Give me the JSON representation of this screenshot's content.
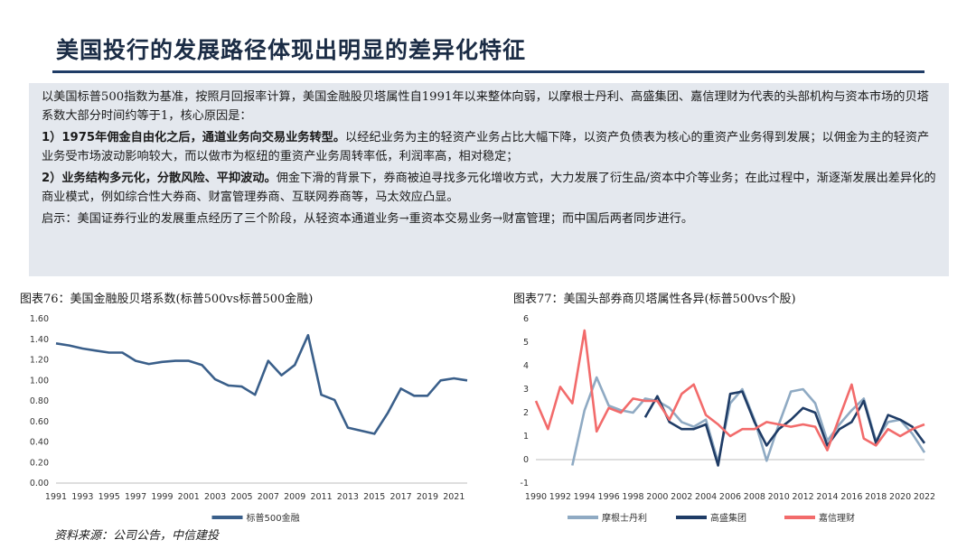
{
  "slide": {
    "title": "美国投行的发展路径体现出明显的差异化特征",
    "source": "资料来源：公司公告，中信建投"
  },
  "summary": {
    "intro": "以美国标普500指数为基准，按照月回报率计算，美国金融股贝塔属性自1991年以来整体向弱，以摩根士丹利、高盛集团、嘉信理财为代表的头部机构与资本市场的贝塔系数大部分时间约等于1，核心原因是：",
    "point1_bold": "1）1975年佣金自由化之后，通道业务向交易业务转型。",
    "point1_text": "以经纪业务为主的轻资产业务占比大幅下降，以资产负债表为核心的重资产业务得到发展；以佣金为主的轻资产业务受市场波动影响较大，而以做市为枢纽的重资产业务周转率低，利润率高，相对稳定；",
    "point2_bold": "2）业务结构多元化，分散风险、平抑波动。",
    "point2_text": "佣金下滑的背景下，券商被迫寻找多元化增收方式，大力发展了衍生品/资本中介等业务；在此过程中，渐逐渐发展出差异化的商业模式，例如综合性大券商、财富管理券商、互联网券商等，马太效应凸显。",
    "insight": "启示：美国证券行业的发展重点经历了三个阶段，从轻资本通道业务→重资本交易业务→财富管理；而中国后两者同步进行。"
  },
  "chart_data": [
    {
      "type": "line",
      "title": "图表76：美国金融股贝塔系数(标普500vs标普500金融)",
      "x": [
        1991,
        1992,
        1993,
        1994,
        1995,
        1996,
        1997,
        1998,
        1999,
        2000,
        2001,
        2002,
        2003,
        2004,
        2005,
        2006,
        2007,
        2008,
        2009,
        2010,
        2011,
        2012,
        2013,
        2014,
        2015,
        2016,
        2017,
        2018,
        2019,
        2020,
        2021,
        2022
      ],
      "x_tick_labels": [
        "1991",
        "1993",
        "1995",
        "1997",
        "1999",
        "2001",
        "2003",
        "2005",
        "2007",
        "2009",
        "2011",
        "2013",
        "2015",
        "2017",
        "2019",
        "2021"
      ],
      "y_tick_labels": [
        "0.00",
        "0.20",
        "0.40",
        "0.60",
        "0.80",
        "1.00",
        "1.20",
        "1.40",
        "1.60"
      ],
      "ylim": [
        0,
        1.6
      ],
      "series": [
        {
          "name": "标普500金融",
          "color": "#3a5f8a",
          "values": [
            1.36,
            1.34,
            1.31,
            1.29,
            1.27,
            1.27,
            1.19,
            1.16,
            1.18,
            1.19,
            1.19,
            1.15,
            1.01,
            0.95,
            0.94,
            0.86,
            1.19,
            1.05,
            1.15,
            1.44,
            0.86,
            0.81,
            0.54,
            0.51,
            0.48,
            0.68,
            0.92,
            0.85,
            0.85,
            1.0,
            1.02,
            1.0
          ]
        }
      ]
    },
    {
      "type": "line",
      "title": "图表77：美国头部券商贝塔属性各异(标普500vs个股)",
      "x": [
        1990,
        1991,
        1992,
        1993,
        1994,
        1995,
        1996,
        1997,
        1998,
        1999,
        2000,
        2001,
        2002,
        2003,
        2004,
        2005,
        2006,
        2007,
        2008,
        2009,
        2010,
        2011,
        2012,
        2013,
        2014,
        2015,
        2016,
        2017,
        2018,
        2019,
        2020,
        2021,
        2022
      ],
      "x_tick_labels": [
        "1990",
        "1992",
        "1994",
        "1996",
        "1998",
        "2000",
        "2002",
        "2004",
        "2006",
        "2008",
        "2010",
        "2012",
        "2014",
        "2016",
        "2018",
        "2020",
        "2022"
      ],
      "y_tick_labels": [
        "-1",
        "0",
        "1",
        "2",
        "3",
        "4",
        "5",
        "6"
      ],
      "ylim": [
        -1,
        6
      ],
      "series": [
        {
          "name": "摩根士丹利",
          "color": "#8faac3",
          "values": [
            null,
            null,
            null,
            -0.25,
            2.1,
            3.5,
            2.3,
            2.1,
            2.0,
            2.6,
            2.5,
            2.2,
            1.6,
            1.4,
            1.7,
            -0.1,
            2.4,
            3.0,
            1.7,
            -0.05,
            1.5,
            2.9,
            3.0,
            2.4,
            0.8,
            1.5,
            2.1,
            2.6,
            0.8,
            1.6,
            1.7,
            1.1,
            0.3
          ]
        },
        {
          "name": "高盛集团",
          "color": "#1f3c66",
          "values": [
            null,
            null,
            null,
            null,
            null,
            null,
            null,
            null,
            null,
            1.8,
            2.7,
            1.6,
            1.3,
            1.3,
            1.5,
            -0.25,
            2.8,
            2.9,
            1.6,
            0.6,
            1.3,
            1.7,
            2.2,
            2.0,
            0.6,
            1.3,
            1.6,
            2.5,
            0.7,
            1.9,
            1.7,
            1.4,
            0.7
          ]
        },
        {
          "name": "嘉信理财",
          "color": "#f26b6b",
          "values": [
            2.5,
            1.3,
            3.1,
            2.4,
            5.5,
            1.2,
            2.2,
            2.0,
            2.6,
            2.5,
            2.5,
            1.7,
            2.8,
            3.2,
            1.9,
            1.5,
            1.0,
            1.3,
            1.3,
            1.6,
            1.5,
            1.4,
            1.5,
            1.4,
            0.4,
            1.8,
            3.2,
            0.9,
            0.6,
            1.3,
            1.0,
            1.3,
            1.5
          ]
        }
      ]
    }
  ]
}
